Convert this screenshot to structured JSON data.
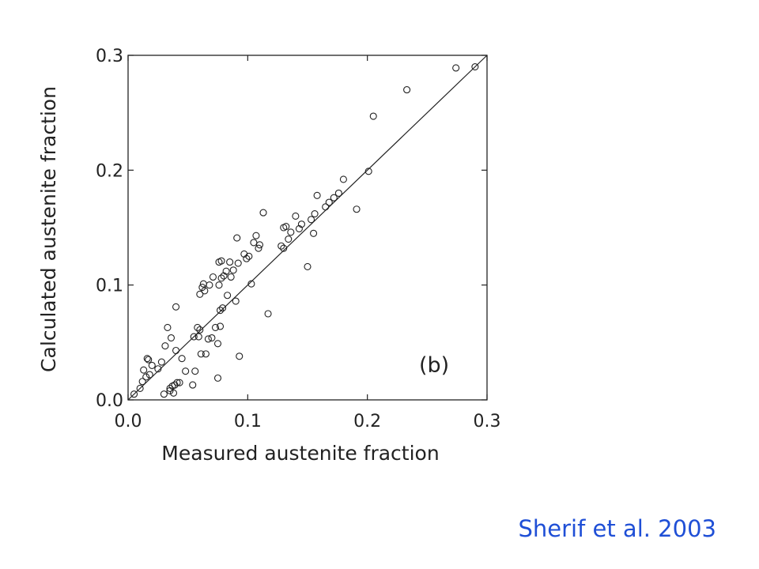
{
  "chart_data": {
    "type": "scatter",
    "xlabel": "Measured austenite fraction",
    "ylabel": "Calculated austenite fraction",
    "panel_label": "(b)",
    "xlim": [
      0,
      0.3
    ],
    "ylim": [
      0,
      0.3
    ],
    "x_ticks": [
      "0.0",
      "0.1",
      "0.2",
      "0.3"
    ],
    "y_ticks": [
      "0.0",
      "0.1",
      "0.2",
      "0.3"
    ],
    "grid": false,
    "reference_line": {
      "x": [
        0,
        0.3
      ],
      "y": [
        0,
        0.3
      ]
    },
    "marker": "open-circle",
    "series": [
      {
        "x": [
          0.005,
          0.01,
          0.012,
          0.013,
          0.015,
          0.016,
          0.017,
          0.018,
          0.02,
          0.025,
          0.028,
          0.03,
          0.031,
          0.033,
          0.035,
          0.035,
          0.036,
          0.037,
          0.038,
          0.039,
          0.04,
          0.04,
          0.041,
          0.043,
          0.045,
          0.048,
          0.054,
          0.055,
          0.056,
          0.058,
          0.059,
          0.06,
          0.06,
          0.061,
          0.062,
          0.063,
          0.064,
          0.065,
          0.067,
          0.068,
          0.07,
          0.071,
          0.073,
          0.075,
          0.075,
          0.076,
          0.076,
          0.077,
          0.077,
          0.078,
          0.078,
          0.079,
          0.08,
          0.082,
          0.083,
          0.085,
          0.086,
          0.088,
          0.09,
          0.091,
          0.092,
          0.093,
          0.097,
          0.099,
          0.101,
          0.103,
          0.105,
          0.107,
          0.109,
          0.11,
          0.113,
          0.117,
          0.128,
          0.13,
          0.13,
          0.132,
          0.134,
          0.136,
          0.14,
          0.143,
          0.145,
          0.15,
          0.153,
          0.155,
          0.156,
          0.158,
          0.165,
          0.168,
          0.172,
          0.176,
          0.18,
          0.191,
          0.201,
          0.205,
          0.233,
          0.274,
          0.29
        ],
        "y": [
          0.005,
          0.01,
          0.016,
          0.026,
          0.02,
          0.036,
          0.035,
          0.022,
          0.03,
          0.027,
          0.033,
          0.005,
          0.047,
          0.063,
          0.01,
          0.008,
          0.054,
          0.012,
          0.006,
          0.013,
          0.043,
          0.081,
          0.015,
          0.015,
          0.036,
          0.025,
          0.013,
          0.055,
          0.025,
          0.063,
          0.055,
          0.092,
          0.061,
          0.04,
          0.098,
          0.101,
          0.095,
          0.04,
          0.053,
          0.1,
          0.054,
          0.107,
          0.063,
          0.049,
          0.019,
          0.1,
          0.12,
          0.064,
          0.078,
          0.121,
          0.106,
          0.08,
          0.108,
          0.112,
          0.091,
          0.12,
          0.107,
          0.113,
          0.086,
          0.141,
          0.119,
          0.038,
          0.127,
          0.123,
          0.125,
          0.101,
          0.137,
          0.143,
          0.132,
          0.135,
          0.163,
          0.075,
          0.134,
          0.132,
          0.15,
          0.151,
          0.14,
          0.146,
          0.16,
          0.149,
          0.153,
          0.116,
          0.157,
          0.145,
          0.162,
          0.178,
          0.168,
          0.172,
          0.176,
          0.18,
          0.192,
          0.166,
          0.199,
          0.247,
          0.27,
          0.289,
          0.29
        ]
      }
    ]
  },
  "citation": "Sherif et al. 2003"
}
